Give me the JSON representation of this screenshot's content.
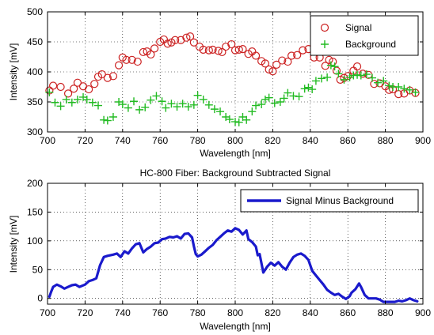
{
  "chart_data": [
    {
      "type": "scatter",
      "title": "",
      "xlabel": "Wavelength [nm]",
      "ylabel": "Intensity [mV]",
      "xlim": [
        700,
        900
      ],
      "ylim": [
        300,
        500
      ],
      "xticks": [
        700,
        720,
        740,
        760,
        780,
        800,
        820,
        840,
        860,
        880,
        900
      ],
      "yticks": [
        300,
        350,
        400,
        450,
        500
      ],
      "grid": true,
      "legend_position": "top-right",
      "series": [
        {
          "name": "Signal",
          "marker": "circle",
          "color": "#cc2222",
          "points": [
            [
              701,
              369
            ],
            [
              703,
              377
            ],
            [
              707,
              375
            ],
            [
              711,
              364
            ],
            [
              714,
              372
            ],
            [
              716,
              382
            ],
            [
              719,
              376
            ],
            [
              722,
              371
            ],
            [
              725,
              380
            ],
            [
              727,
              392
            ],
            [
              729,
              396
            ],
            [
              732,
              390
            ],
            [
              735,
              393
            ],
            [
              738,
              411
            ],
            [
              740,
              424
            ],
            [
              742,
              420
            ],
            [
              745,
              420
            ],
            [
              748,
              417
            ],
            [
              751,
              433
            ],
            [
              753,
              434
            ],
            [
              755,
              429
            ],
            [
              757,
              439
            ],
            [
              760,
              450
            ],
            [
              762,
              454
            ],
            [
              764,
              447
            ],
            [
              766,
              449
            ],
            [
              768,
              453
            ],
            [
              771,
              453
            ],
            [
              774,
              457
            ],
            [
              776,
              459
            ],
            [
              778,
              449
            ],
            [
              781,
              442
            ],
            [
              783,
              437
            ],
            [
              786,
              436
            ],
            [
              788,
              437
            ],
            [
              791,
              435
            ],
            [
              793,
              433
            ],
            [
              795,
              442
            ],
            [
              798,
              446
            ],
            [
              800,
              436
            ],
            [
              802,
              437
            ],
            [
              804,
              438
            ],
            [
              807,
              430
            ],
            [
              809,
              434
            ],
            [
              811,
              427
            ],
            [
              814,
              418
            ],
            [
              816,
              414
            ],
            [
              818,
              404
            ],
            [
              820,
              401
            ],
            [
              822,
              412
            ],
            [
              825,
              419
            ],
            [
              828,
              417
            ],
            [
              830,
              427
            ],
            [
              833,
              428
            ],
            [
              836,
              436
            ],
            [
              839,
              438
            ],
            [
              842,
              424
            ],
            [
              845,
              424
            ],
            [
              848,
              410
            ],
            [
              850,
              420
            ],
            [
              852,
              417
            ],
            [
              854,
              402
            ],
            [
              856,
              387
            ],
            [
              858,
              390
            ],
            [
              860,
              393
            ],
            [
              863,
              402
            ],
            [
              865,
              409
            ],
            [
              868,
              397
            ],
            [
              871,
              395
            ],
            [
              874,
              380
            ],
            [
              877,
              381
            ],
            [
              880,
              376
            ],
            [
              882,
              370
            ],
            [
              884,
              371
            ],
            [
              887,
              363
            ],
            [
              890,
              364
            ],
            [
              893,
              369
            ],
            [
              896,
              365
            ]
          ]
        },
        {
          "name": "Background",
          "marker": "plus",
          "color": "#22bb22",
          "points": [
            [
              701,
              366
            ],
            [
              704,
              349
            ],
            [
              707,
              343
            ],
            [
              710,
              354
            ],
            [
              713,
              349
            ],
            [
              716,
              354
            ],
            [
              719,
              358
            ],
            [
              721,
              354
            ],
            [
              724,
              349
            ],
            [
              727,
              344
            ],
            [
              730,
              320
            ],
            [
              732,
              319
            ],
            [
              735,
              325
            ],
            [
              738,
              350
            ],
            [
              740,
              346
            ],
            [
              743,
              340
            ],
            [
              746,
              351
            ],
            [
              749,
              337
            ],
            [
              752,
              341
            ],
            [
              755,
              353
            ],
            [
              758,
              360
            ],
            [
              761,
              351
            ],
            [
              763,
              340
            ],
            [
              766,
              347
            ],
            [
              769,
              342
            ],
            [
              772,
              347
            ],
            [
              775,
              342
            ],
            [
              778,
              345
            ],
            [
              780,
              361
            ],
            [
              783,
              354
            ],
            [
              786,
              345
            ],
            [
              789,
              338
            ],
            [
              792,
              334
            ],
            [
              795,
              325
            ],
            [
              797,
              321
            ],
            [
              800,
              317
            ],
            [
              802,
              316
            ],
            [
              804,
              325
            ],
            [
              806,
              320
            ],
            [
              809,
              334
            ],
            [
              811,
              344
            ],
            [
              814,
              346
            ],
            [
              816,
              354
            ],
            [
              818,
              357
            ],
            [
              821,
              348
            ],
            [
              824,
              350
            ],
            [
              826,
              356
            ],
            [
              828,
              365
            ],
            [
              831,
              360
            ],
            [
              834,
              359
            ],
            [
              837,
              372
            ],
            [
              839,
              374
            ],
            [
              841,
              371
            ],
            [
              843,
              385
            ],
            [
              846,
              389
            ],
            [
              849,
              391
            ],
            [
              851,
              411
            ],
            [
              853,
              409
            ],
            [
              855,
              397
            ],
            [
              858,
              387
            ],
            [
              861,
              391
            ],
            [
              863,
              394
            ],
            [
              865,
              395
            ],
            [
              867,
              394
            ],
            [
              870,
              396
            ],
            [
              873,
              390
            ],
            [
              876,
              382
            ],
            [
              879,
              385
            ],
            [
              882,
              377
            ],
            [
              884,
              375
            ],
            [
              887,
              375
            ],
            [
              890,
              372
            ],
            [
              893,
              370
            ],
            [
              896,
              366
            ]
          ]
        }
      ]
    },
    {
      "type": "line",
      "title": "HC-800 Fiber: Background Subtracted Signal",
      "xlabel": "Wavelength [nm]",
      "ylabel": "Intensity [mV]",
      "xlim": [
        700,
        900
      ],
      "ylim": [
        -10,
        200
      ],
      "xticks": [
        700,
        720,
        740,
        760,
        780,
        800,
        820,
        840,
        860,
        880,
        900
      ],
      "yticks": [
        0,
        50,
        100,
        150,
        200
      ],
      "grid": true,
      "legend_position": "top-right",
      "series": [
        {
          "name": "Signal Minus Background",
          "color": "#1a1acc",
          "points": [
            [
              701,
              3
            ],
            [
              702,
              12
            ],
            [
              703,
              20
            ],
            [
              705,
              24
            ],
            [
              707,
              21
            ],
            [
              709,
              17
            ],
            [
              711,
              20
            ],
            [
              713,
              23
            ],
            [
              715,
              24
            ],
            [
              717,
              20
            ],
            [
              720,
              24
            ],
            [
              722,
              30
            ],
            [
              724,
              32
            ],
            [
              726,
              35
            ],
            [
              728,
              58
            ],
            [
              730,
              72
            ],
            [
              732,
              74
            ],
            [
              735,
              76
            ],
            [
              737,
              78
            ],
            [
              739,
              72
            ],
            [
              741,
              82
            ],
            [
              743,
              78
            ],
            [
              745,
              87
            ],
            [
              747,
              94
            ],
            [
              749,
              96
            ],
            [
              751,
              80
            ],
            [
              753,
              86
            ],
            [
              755,
              90
            ],
            [
              757,
              96
            ],
            [
              759,
              97
            ],
            [
              761,
              103
            ],
            [
              763,
              104
            ],
            [
              765,
              107
            ],
            [
              767,
              106
            ],
            [
              769,
              108
            ],
            [
              771,
              104
            ],
            [
              773,
              112
            ],
            [
              775,
              113
            ],
            [
              777,
              106
            ],
            [
              778,
              90
            ],
            [
              779,
              77
            ],
            [
              780,
              73
            ],
            [
              782,
              76
            ],
            [
              784,
              82
            ],
            [
              786,
              88
            ],
            [
              788,
              93
            ],
            [
              790,
              101
            ],
            [
              792,
              107
            ],
            [
              794,
              113
            ],
            [
              796,
              118
            ],
            [
              798,
              116
            ],
            [
              800,
              122
            ],
            [
              802,
              119
            ],
            [
              804,
              111
            ],
            [
              806,
              118
            ],
            [
              807,
              103
            ],
            [
              809,
              98
            ],
            [
              811,
              90
            ],
            [
              812,
              75
            ],
            [
              813,
              77
            ],
            [
              815,
              45
            ],
            [
              817,
              55
            ],
            [
              819,
              62
            ],
            [
              821,
              57
            ],
            [
              823,
              63
            ],
            [
              825,
              55
            ],
            [
              827,
              50
            ],
            [
              829,
              62
            ],
            [
              831,
              72
            ],
            [
              833,
              76
            ],
            [
              835,
              78
            ],
            [
              837,
              74
            ],
            [
              839,
              67
            ],
            [
              841,
              48
            ],
            [
              843,
              40
            ],
            [
              845,
              32
            ],
            [
              847,
              24
            ],
            [
              849,
              15
            ],
            [
              851,
              10
            ],
            [
              853,
              6
            ],
            [
              855,
              8
            ],
            [
              857,
              3
            ],
            [
              859,
              -1
            ],
            [
              861,
              4
            ],
            [
              862,
              10
            ],
            [
              864,
              16
            ],
            [
              866,
              26
            ],
            [
              867,
              20
            ],
            [
              869,
              6
            ],
            [
              871,
              0
            ],
            [
              873,
              0
            ],
            [
              875,
              0
            ],
            [
              877,
              -2
            ],
            [
              879,
              -6
            ],
            [
              881,
              -6
            ],
            [
              883,
              -6
            ],
            [
              885,
              -6
            ],
            [
              887,
              -4
            ],
            [
              889,
              -5
            ],
            [
              891,
              -3
            ],
            [
              893,
              0
            ],
            [
              895,
              -3
            ],
            [
              897,
              -5
            ]
          ]
        }
      ]
    }
  ]
}
